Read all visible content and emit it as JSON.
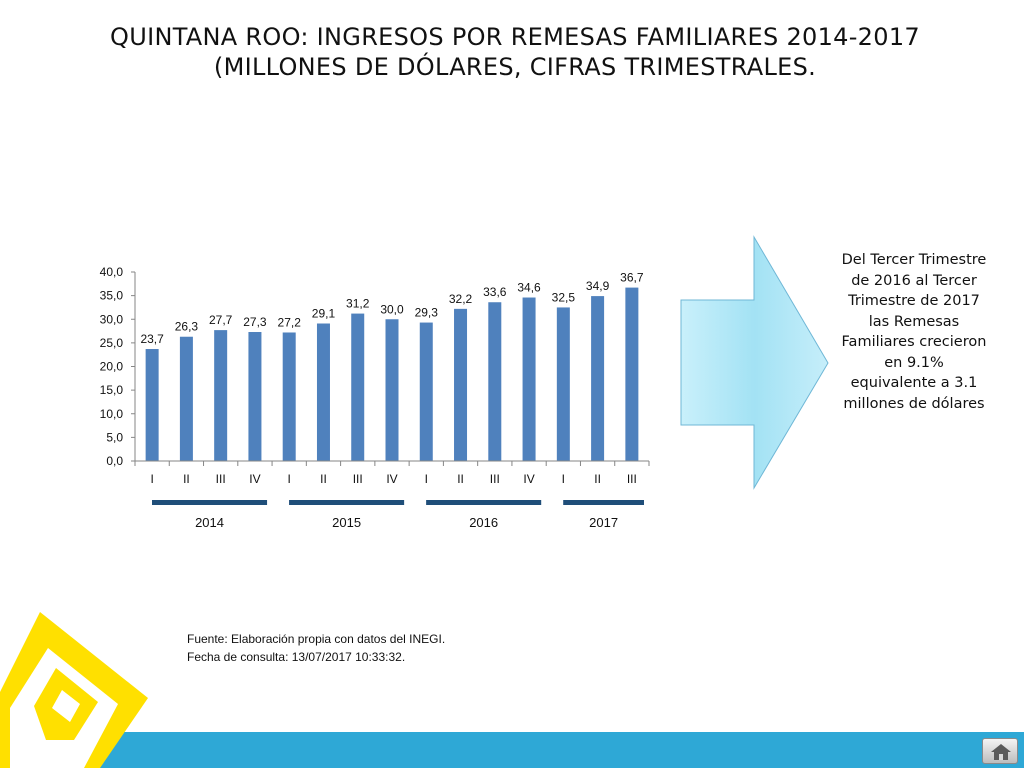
{
  "title": {
    "line1": "QUINTANA ROO: INGRESOS POR REMESAS FAMILIARES  2014-2017",
    "line2": "(MILLONES DE DÓLARES, CIFRAS TRIMESTRALES."
  },
  "chart_data": {
    "type": "bar",
    "title": "",
    "xlabel": "",
    "ylabel": "",
    "ylim": [
      0,
      40
    ],
    "yticks": [
      "0,0",
      "5,0",
      "10,0",
      "15,0",
      "20,0",
      "25,0",
      "30,0",
      "35,0",
      "40,0"
    ],
    "categories": [
      "I",
      "II",
      "III",
      "IV",
      "I",
      "II",
      "III",
      "IV",
      "I",
      "II",
      "III",
      "IV",
      "I",
      "II",
      "III"
    ],
    "values": [
      23.7,
      26.3,
      27.7,
      27.3,
      27.2,
      29.1,
      31.2,
      30.0,
      29.3,
      32.2,
      33.6,
      34.6,
      32.5,
      34.9,
      36.7
    ],
    "data_labels": [
      "23,7",
      "26,3",
      "27,7",
      "27,3",
      "27,2",
      "29,1",
      "31,2",
      "30,0",
      "29,3",
      "32,2",
      "33,6",
      "34,6",
      "32,5",
      "34,9",
      "36,7"
    ],
    "year_groups": [
      {
        "label": "2014",
        "quarters": 4
      },
      {
        "label": "2015",
        "quarters": 4
      },
      {
        "label": "2016",
        "quarters": 4
      },
      {
        "label": "2017",
        "quarters": 3
      }
    ],
    "bar_color": "#4f81bd",
    "grid": false,
    "legend": "none"
  },
  "callout": {
    "text": "Del Tercer Trimestre de 2016 al Tercer Trimestre de 2017 las Remesas Familiares crecieron en 9.1% equivalente a 3.1  millones de dólares"
  },
  "source": {
    "line1": "Fuente: Elaboración propia con datos del INEGI.",
    "line2": "Fecha de consulta: 13/07/2017 10:33:32."
  },
  "colors": {
    "bar": "#4f81bd",
    "year_bracket": "#1f4e79",
    "arrow_fill": "#a6e3f5",
    "footer_band": "#2ea8d6",
    "logo_yellow": "#ffe000"
  },
  "icons": {
    "arrow": "right-arrow-shape",
    "logo": "yellow-square-logo",
    "home": "home-icon"
  }
}
